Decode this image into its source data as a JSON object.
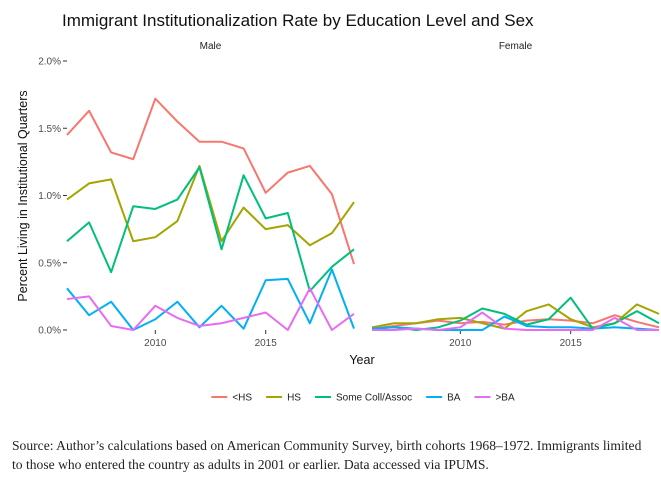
{
  "chart_data": {
    "type": "line",
    "title": "Immigrant Institutionalization Rate by Education Level and Sex",
    "xlabel": "Year",
    "ylabel": "Percent Living in Institutional Quarters",
    "xlim": [
      2006,
      2019
    ],
    "ylim": [
      0,
      2.0
    ],
    "x_ticks": [
      2010,
      2015
    ],
    "y_ticks": [
      "0.0%",
      "0.5%",
      "1.0%",
      "1.5%",
      "2.0%"
    ],
    "y_tick_values": [
      0,
      0.5,
      1.0,
      1.5,
      2.0
    ],
    "grid": false,
    "legend_position": "bottom",
    "x": [
      2006,
      2007,
      2008,
      2009,
      2010,
      2011,
      2012,
      2013,
      2014,
      2015,
      2016,
      2017,
      2018,
      2019
    ],
    "panels": [
      {
        "name": "Male",
        "series": [
          {
            "name": "<HS",
            "color": "#F8766D",
            "values": [
              1.45,
              1.63,
              1.32,
              1.27,
              1.72,
              1.55,
              1.4,
              1.4,
              1.35,
              1.02,
              1.17,
              1.22,
              1.01,
              0.49
            ]
          },
          {
            "name": "HS",
            "color": "#A3A500",
            "values": [
              0.97,
              1.09,
              1.12,
              0.66,
              0.69,
              0.81,
              1.22,
              0.66,
              0.91,
              0.75,
              0.78,
              0.63,
              0.72,
              0.95
            ]
          },
          {
            "name": "Some Coll/Assoc",
            "color": "#00BF7D",
            "values": [
              0.66,
              0.8,
              0.43,
              0.92,
              0.9,
              0.97,
              1.21,
              0.6,
              1.15,
              0.83,
              0.87,
              0.29,
              0.47,
              0.6
            ]
          },
          {
            "name": "BA",
            "color": "#00B0F6",
            "values": [
              0.31,
              0.11,
              0.21,
              0.0,
              0.08,
              0.21,
              0.02,
              0.18,
              0.01,
              0.37,
              0.38,
              0.05,
              0.45,
              0.01
            ]
          },
          {
            "name": ">BA",
            "color": "#E76BF3",
            "values": [
              0.23,
              0.25,
              0.03,
              0.0,
              0.18,
              0.09,
              0.03,
              0.05,
              0.09,
              0.13,
              0.0,
              0.31,
              0.0,
              0.12
            ]
          }
        ]
      },
      {
        "name": "Female",
        "series": [
          {
            "name": "<HS",
            "color": "#F8766D",
            "values": [
              0.01,
              0.03,
              0.05,
              0.07,
              0.05,
              0.06,
              0.04,
              0.07,
              0.08,
              0.07,
              0.05,
              0.11,
              0.06,
              0.02
            ]
          },
          {
            "name": "HS",
            "color": "#A3A500",
            "values": [
              0.02,
              0.05,
              0.05,
              0.08,
              0.09,
              0.05,
              0.01,
              0.14,
              0.19,
              0.08,
              0.02,
              0.05,
              0.19,
              0.12
            ]
          },
          {
            "name": "Some Coll/Assoc",
            "color": "#00BF7D",
            "values": [
              0.01,
              0.02,
              0.0,
              0.02,
              0.07,
              0.16,
              0.12,
              0.04,
              0.08,
              0.24,
              0.01,
              0.05,
              0.14,
              0.05
            ]
          },
          {
            "name": "BA",
            "color": "#00B0F6",
            "values": [
              0.01,
              0.02,
              0.01,
              0.0,
              0.0,
              0.0,
              0.1,
              0.03,
              0.02,
              0.02,
              0.01,
              0.02,
              0.01,
              0.0
            ]
          },
          {
            "name": ">BA",
            "color": "#E76BF3",
            "values": [
              0.0,
              0.0,
              0.01,
              0.0,
              0.02,
              0.13,
              0.01,
              0.0,
              0.0,
              0.0,
              0.0,
              0.09,
              0.0,
              0.0
            ]
          }
        ]
      }
    ]
  },
  "source_note": "Source: Author’s calculations based on American Community Survey, birth cohorts 1968–1972. Immigrants limited to those who entered the country as adults in 2001 or earlier. Data accessed via IPUMS."
}
